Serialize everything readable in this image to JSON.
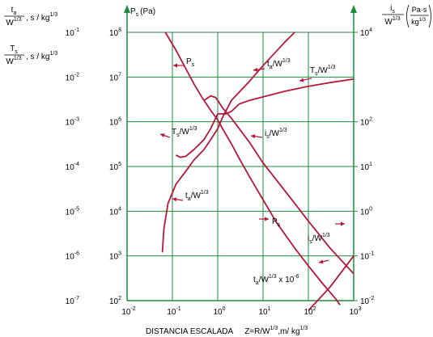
{
  "chart_data": {
    "type": "line",
    "x_axis": {
      "scale": "log",
      "range": [
        0.01,
        1000
      ],
      "ticks": [
        {
          "base": "10",
          "exp": "-2",
          "value": 0.01
        },
        {
          "base": "10",
          "exp": "-1",
          "value": 0.1
        },
        {
          "base": "10",
          "exp": "0",
          "value": 1
        },
        {
          "base": "10",
          "exp": "1",
          "value": 10
        },
        {
          "base": "10",
          "exp": "2",
          "value": 100
        },
        {
          "base": "10",
          "exp": "3",
          "value": 1000
        }
      ],
      "label_prefix": "DISTANCIA ESCALADA",
      "label_main": "Z=R/W",
      "label_sup": "1/3",
      "label_suffix": ",m/ kg",
      "label_sup2": "1/3"
    },
    "left_axis_1": {
      "scale": "log",
      "range": [
        1e-07,
        0.1
      ],
      "label_num": "t",
      "label_num_sub": "a",
      "label_den": "W",
      "label_den_sup": "1/3",
      "label_unit": ", s / kg",
      "label_unit_sup": "1/3",
      "label2_num": "T",
      "label2_num_sub": "s",
      "label2_den": "W",
      "label2_den_sup": "1/3",
      "label2_unit": ", s / kg",
      "label2_unit_sup": "1/3",
      "ticks": [
        {
          "base": "10",
          "exp": "-1",
          "value": 0.1
        },
        {
          "base": "10",
          "exp": "-2",
          "value": 0.01
        },
        {
          "base": "10",
          "exp": "-3",
          "value": 0.001
        },
        {
          "base": "10",
          "exp": "-4",
          "value": 0.0001
        },
        {
          "base": "10",
          "exp": "-5",
          "value": 1e-05
        },
        {
          "base": "10",
          "exp": "-6",
          "value": 1e-06
        },
        {
          "base": "10",
          "exp": "-7",
          "value": 1e-07
        }
      ]
    },
    "left_axis_2": {
      "scale": "log",
      "range": [
        100,
        100000000
      ],
      "label": "P",
      "label_sub": "s",
      "label_unit": "(Pa)",
      "ticks": [
        {
          "base": "10",
          "exp": "8",
          "value": 100000000
        },
        {
          "base": "10",
          "exp": "7",
          "value": 10000000
        },
        {
          "base": "10",
          "exp": "6",
          "value": 1000000
        },
        {
          "base": "10",
          "exp": "5",
          "value": 100000
        },
        {
          "base": "10",
          "exp": "4",
          "value": 10000
        },
        {
          "base": "10",
          "exp": "3",
          "value": 1000
        },
        {
          "base": "10",
          "exp": "2",
          "value": 100
        }
      ]
    },
    "right_axis": {
      "scale": "log",
      "range": [
        0.01,
        10000
      ],
      "label_num": "i",
      "label_num_sub": "s",
      "label_den": "W",
      "label_den_sup": "1/3",
      "label_unit_num": "Pa·s",
      "label_unit_den": "kg",
      "label_unit_den_sup": "1/3",
      "ticks": [
        {
          "base": "10",
          "exp": "4",
          "value": 10000
        },
        {
          "base": "10",
          "exp": "2",
          "value": 100
        },
        {
          "base": "10",
          "exp": "1",
          "value": 10
        },
        {
          "base": "10",
          "exp": "0",
          "value": 1
        },
        {
          "base": "10",
          "exp": "-1",
          "value": 0.1
        },
        {
          "base": "10",
          "exp": "-2",
          "value": 0.01
        }
      ]
    },
    "grid": true,
    "colors": {
      "curve": "#b5173b",
      "axis": "#1e8a3c",
      "grid": "#1e8a3c",
      "text": "#000000"
    },
    "series": [
      {
        "name": "Ps",
        "axis": "Ps",
        "points": [
          [
            0.07,
            100000000
          ],
          [
            0.12,
            40000000
          ],
          [
            0.2,
            15000000
          ],
          [
            0.3,
            7000000
          ],
          [
            0.45,
            3500000
          ],
          [
            0.7,
            1800000
          ],
          [
            1,
            1100000
          ],
          [
            1.3,
            680000
          ],
          [
            2,
            320000
          ],
          [
            3,
            150000
          ],
          [
            5,
            60000
          ],
          [
            10,
            18000
          ],
          [
            20,
            5500
          ],
          [
            50,
            1500
          ],
          [
            100,
            600
          ],
          [
            200,
            250
          ],
          [
            400,
            110
          ],
          [
            500,
            80
          ]
        ]
      },
      {
        "name": "ta/W^1/3",
        "axis": "left",
        "points": [
          [
            0.06,
            1.2e-06
          ],
          [
            0.065,
            4e-06
          ],
          [
            0.08,
            1.5e-05
          ],
          [
            0.12,
            4e-05
          ],
          [
            0.2,
            8e-05
          ],
          [
            0.3,
            0.00014
          ],
          [
            0.5,
            0.00024
          ],
          [
            0.7,
            0.0004
          ],
          [
            1,
            0.0007
          ],
          [
            1.3,
            0.0013
          ],
          [
            2,
            0.003
          ],
          [
            5,
            0.008
          ],
          [
            10,
            0.018
          ],
          [
            30,
            0.06
          ],
          [
            50,
            0.1
          ]
        ]
      },
      {
        "name": "Ts/W^1/3",
        "axis": "left",
        "points": [
          [
            0.12,
            0.00018
          ],
          [
            0.15,
            0.00016
          ],
          [
            0.2,
            0.00017
          ],
          [
            0.3,
            0.00024
          ],
          [
            0.5,
            0.0004
          ],
          [
            0.7,
            0.0007
          ],
          [
            0.9,
            0.0012
          ],
          [
            1,
            0.0015
          ],
          [
            1.5,
            0.0015
          ],
          [
            2,
            0.0017
          ],
          [
            3,
            0.0025
          ],
          [
            5,
            0.003
          ],
          [
            10,
            0.0036
          ],
          [
            30,
            0.0048
          ],
          [
            100,
            0.0062
          ],
          [
            300,
            0.0075
          ],
          [
            1000,
            0.009
          ]
        ]
      },
      {
        "name": "is/W^1/3",
        "axis": "right",
        "points": [
          [
            0.5,
            300
          ],
          [
            0.7,
            380
          ],
          [
            0.9,
            350
          ],
          [
            1,
            300
          ],
          [
            1.3,
            200
          ],
          [
            2,
            120
          ],
          [
            5,
            35
          ],
          [
            10,
            12
          ],
          [
            50,
            1.5
          ],
          [
            100,
            0.6
          ],
          [
            300,
            0.15
          ],
          [
            1000,
            0.04
          ]
        ]
      },
      {
        "name": "ta/W^1/3 x 10^-6",
        "axis": "left",
        "points": [
          [
            100,
            6e-08
          ],
          [
            300,
            2e-07
          ],
          [
            1000,
            1e-06
          ]
        ]
      }
    ],
    "labels": [
      {
        "text_main": "P",
        "text_sub": "s",
        "text_rest": "",
        "text_sup": ""
      },
      {
        "text_main": "t",
        "text_sub": "a",
        "text_rest": "/W",
        "text_sup": "1/3"
      },
      {
        "text_main": "T",
        "text_sub": "s",
        "text_rest": "/W",
        "text_sup": "1/3"
      },
      {
        "text_main": "T",
        "text_sub": "s",
        "text_rest": "/W",
        "text_sup": "1/3"
      },
      {
        "text_main": "i",
        "text_sub": "s",
        "text_rest": "/W",
        "text_sup": "1/3"
      },
      {
        "text_main": "t",
        "text_sub": "a",
        "text_rest": "/W",
        "text_sup": "1/3"
      },
      {
        "text_main": "P",
        "text_sub": "s",
        "text_rest": "",
        "text_sup": ""
      },
      {
        "text_main": "i",
        "text_sub": "s",
        "text_rest": "/W",
        "text_sup": "1/3"
      },
      {
        "text_main": "t",
        "text_sub": "a",
        "text_rest": "/W",
        "text_sup": "1/3",
        "text_after": " x 10",
        "text_sup2": "-6"
      }
    ]
  }
}
